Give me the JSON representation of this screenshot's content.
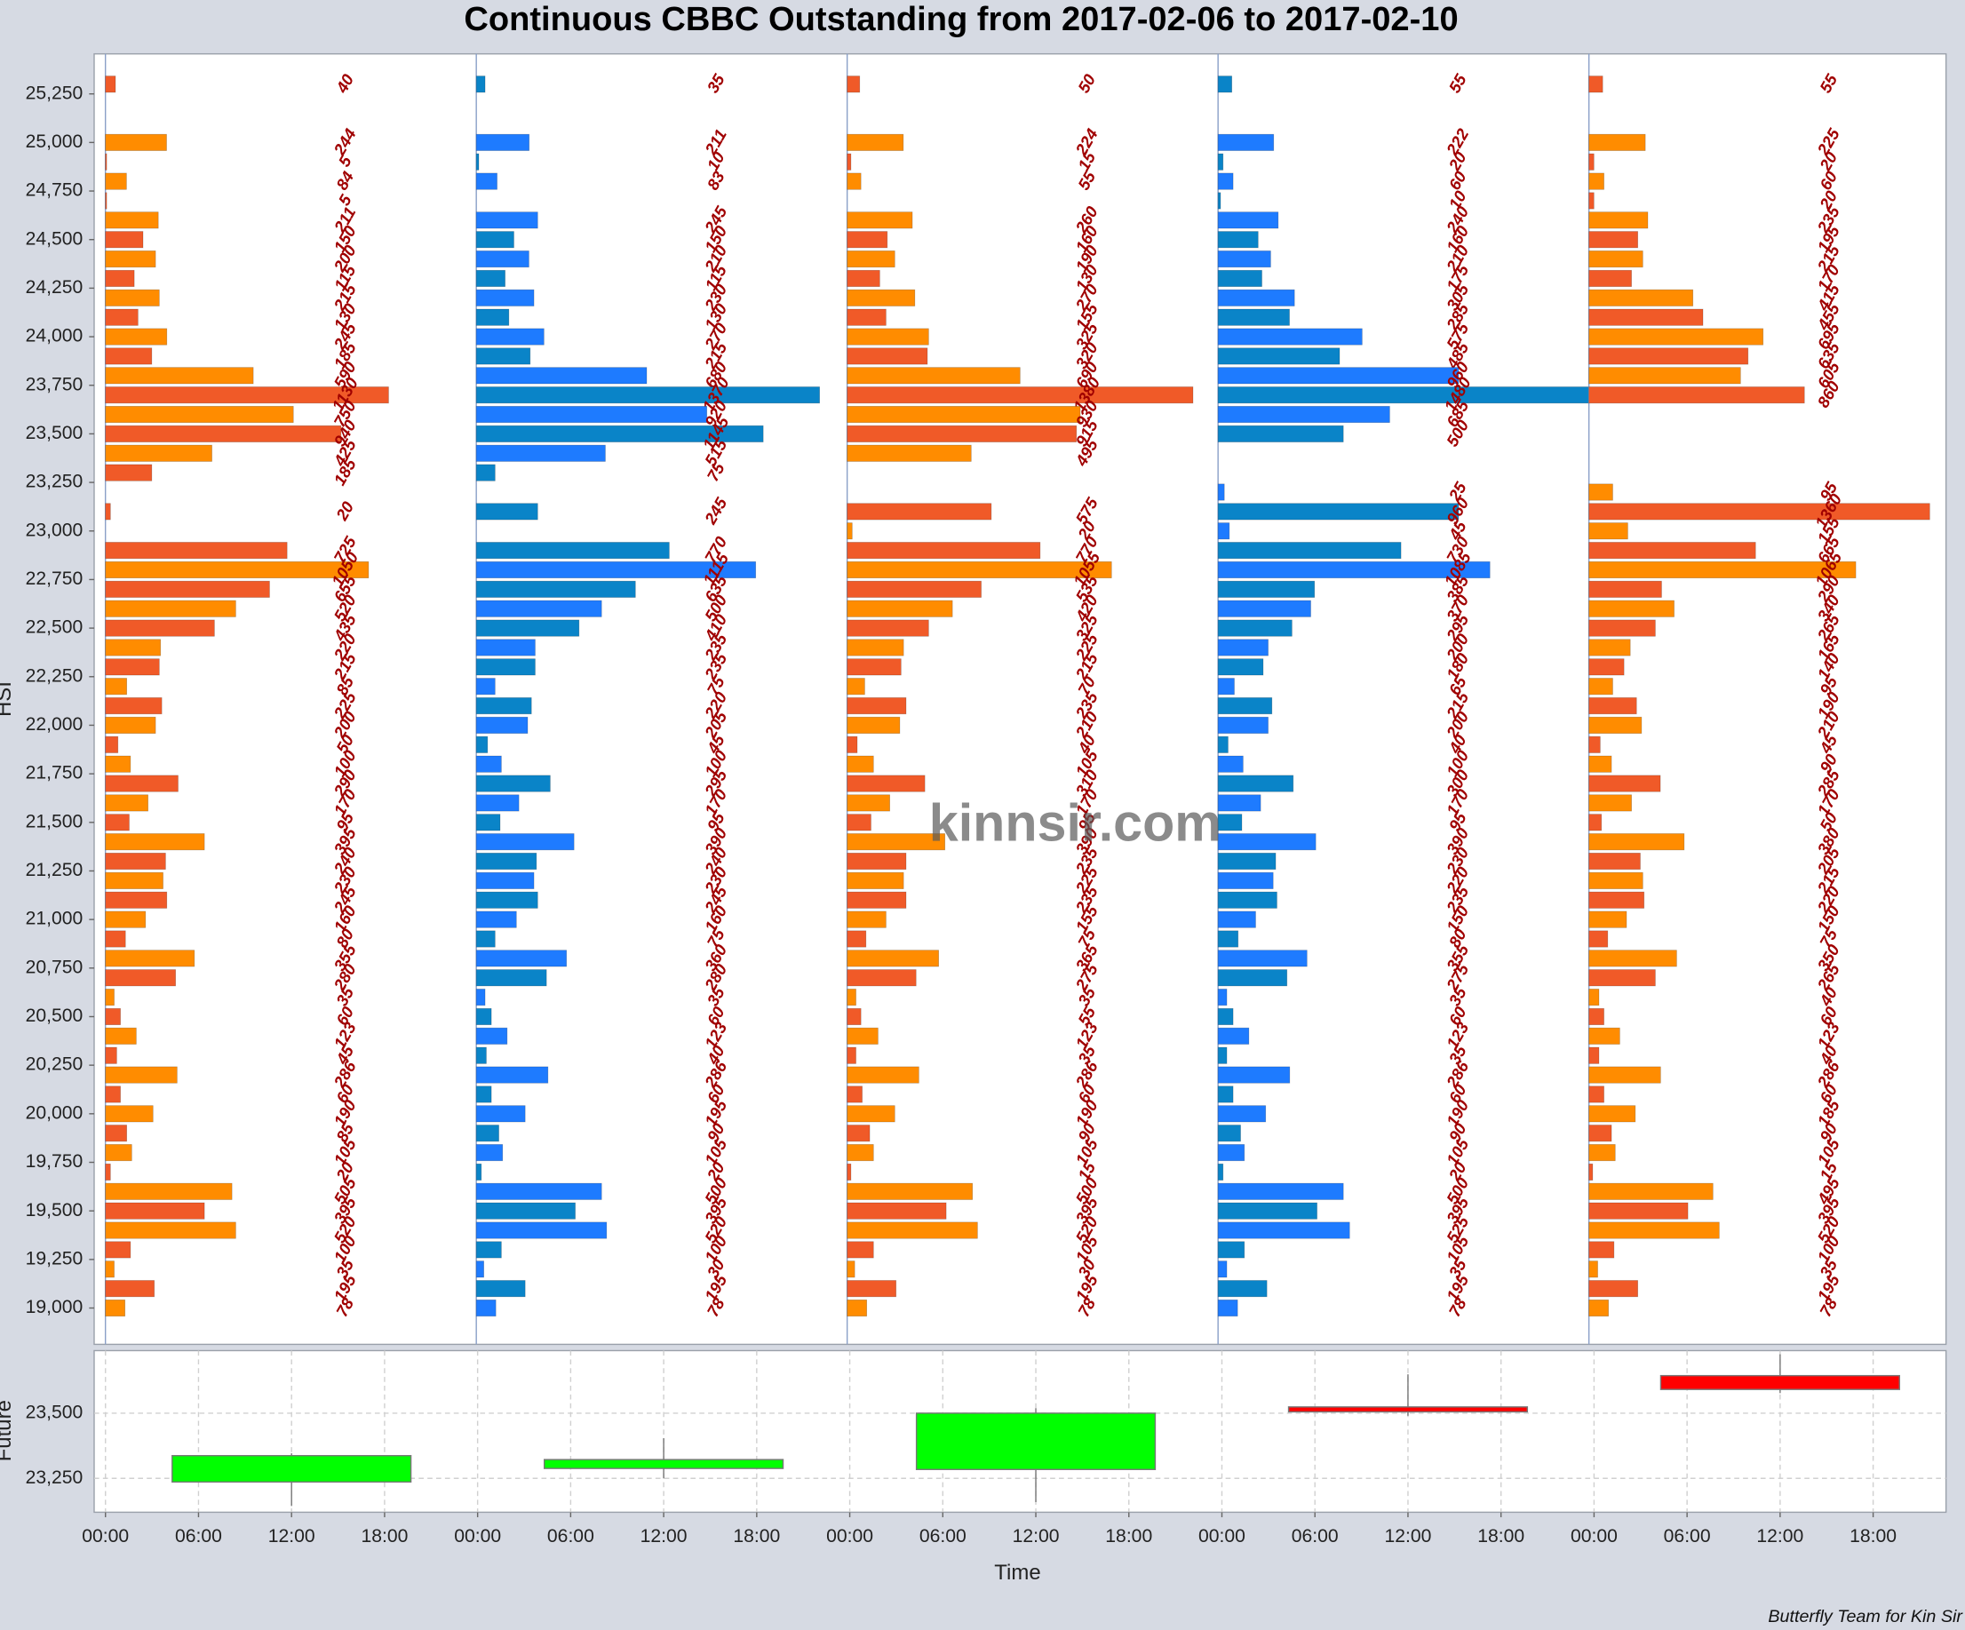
{
  "chart_data": [
    {
      "type": "hbar",
      "title": "Continuous CBBC Outstanding from 2017-02-06 to 2017-02-10",
      "ylabel": "HSI",
      "watermark": "kinnsir.com",
      "ylim": [
        18813,
        25456
      ],
      "yticks": [
        {
          "value": 19000,
          "label": "19,000"
        },
        {
          "value": 19250,
          "label": "19,250"
        },
        {
          "value": 19500,
          "label": "19,500"
        },
        {
          "value": 19750,
          "label": "19,750"
        },
        {
          "value": 20000,
          "label": "20,000"
        },
        {
          "value": 20250,
          "label": "20,250"
        },
        {
          "value": 20500,
          "label": "20,500"
        },
        {
          "value": 20750,
          "label": "20,750"
        },
        {
          "value": 21000,
          "label": "21,000"
        },
        {
          "value": 21250,
          "label": "21,250"
        },
        {
          "value": 21500,
          "label": "21,500"
        },
        {
          "value": 21750,
          "label": "21,750"
        },
        {
          "value": 22000,
          "label": "22,000"
        },
        {
          "value": 22250,
          "label": "22,250"
        },
        {
          "value": 22500,
          "label": "22,500"
        },
        {
          "value": 22750,
          "label": "22,750"
        },
        {
          "value": 23000,
          "label": "23,000"
        },
        {
          "value": 23250,
          "label": "23,250"
        },
        {
          "value": 23500,
          "label": "23,500"
        },
        {
          "value": 23750,
          "label": "23,750"
        },
        {
          "value": 24000,
          "label": "24,000"
        },
        {
          "value": 24250,
          "label": "24,250"
        },
        {
          "value": 24500,
          "label": "24,500"
        },
        {
          "value": 24750,
          "label": "24,750"
        },
        {
          "value": 25000,
          "label": "25,000"
        },
        {
          "value": 25250,
          "label": "25,250"
        }
      ],
      "xlim": [
        0,
        1480
      ],
      "y": [
        25300,
        25200,
        25100,
        25000,
        24900,
        24800,
        24700,
        24600,
        24500,
        24400,
        24300,
        24200,
        24100,
        24000,
        23900,
        23800,
        23700,
        23600,
        23500,
        23400,
        23300,
        23200,
        23100,
        23000,
        22900,
        22800,
        22700,
        22600,
        22500,
        22400,
        22300,
        22200,
        22100,
        22000,
        21900,
        21800,
        21700,
        21600,
        21500,
        21400,
        21300,
        21200,
        21100,
        21000,
        20900,
        20800,
        20700,
        20600,
        20500,
        20400,
        20300,
        20200,
        20100,
        20000,
        19900,
        19800,
        19700,
        19600,
        19500,
        19400,
        19300,
        19200,
        19100,
        19000
      ],
      "label_color": "#a00000",
      "series": [
        {
          "colors": [
            "#ff8c00",
            "#f05a28"
          ],
          "values": [
            40,
            0,
            0,
            244,
            5,
            84,
            5,
            211,
            150,
            200,
            115,
            215,
            130,
            245,
            185,
            590,
            1130,
            750,
            940,
            425,
            185,
            0,
            20,
            0,
            725,
            1050,
            655,
            520,
            435,
            220,
            215,
            85,
            225,
            200,
            50,
            100,
            290,
            170,
            95,
            395,
            240,
            230,
            245,
            160,
            80,
            355,
            280,
            35,
            60,
            123,
            45,
            286,
            60,
            190,
            85,
            105,
            20,
            505,
            395,
            520,
            100,
            35,
            195,
            78
          ]
        },
        {
          "colors": [
            "#1e7bff",
            "#0a84c8"
          ],
          "values": [
            35,
            0,
            0,
            211,
            10,
            83,
            0,
            245,
            150,
            210,
            115,
            230,
            130,
            270,
            215,
            680,
            1370,
            920,
            1145,
            515,
            75,
            0,
            245,
            0,
            770,
            1115,
            635,
            500,
            410,
            235,
            235,
            75,
            220,
            205,
            45,
            100,
            295,
            170,
            95,
            390,
            240,
            230,
            245,
            160,
            75,
            360,
            280,
            35,
            60,
            123,
            40,
            286,
            60,
            195,
            90,
            105,
            20,
            500,
            395,
            520,
            100,
            30,
            195,
            78
          ]
        },
        {
          "colors": [
            "#ff8c00",
            "#f05a28"
          ],
          "values": [
            50,
            0,
            0,
            224,
            15,
            55,
            0,
            260,
            160,
            190,
            130,
            270,
            155,
            325,
            320,
            690,
            1380,
            930,
            915,
            495,
            0,
            0,
            575,
            20,
            770,
            1055,
            535,
            420,
            325,
            225,
            215,
            70,
            235,
            210,
            40,
            105,
            310,
            170,
            95,
            390,
            235,
            225,
            235,
            155,
            75,
            365,
            275,
            35,
            55,
            123,
            35,
            286,
            60,
            190,
            90,
            105,
            15,
            500,
            395,
            520,
            105,
            30,
            195,
            78
          ]
        },
        {
          "colors": [
            "#1e7bff",
            "#0a84c8"
          ],
          "values": [
            55,
            0,
            0,
            222,
            20,
            60,
            10,
            240,
            160,
            210,
            175,
            305,
            285,
            575,
            485,
            960,
            1480,
            685,
            500,
            0,
            0,
            25,
            960,
            45,
            730,
            1085,
            385,
            370,
            295,
            200,
            180,
            65,
            215,
            200,
            40,
            100,
            300,
            170,
            95,
            390,
            230,
            220,
            235,
            150,
            80,
            355,
            275,
            35,
            60,
            123,
            35,
            286,
            60,
            190,
            90,
            105,
            20,
            500,
            395,
            525,
            105,
            35,
            195,
            78
          ]
        },
        {
          "colors": [
            "#ff8c00",
            "#f05a28"
          ],
          "values": [
            55,
            0,
            0,
            225,
            20,
            60,
            20,
            235,
            195,
            215,
            170,
            415,
            455,
            695,
            635,
            605,
            860,
            0,
            0,
            0,
            0,
            95,
            1360,
            155,
            665,
            1065,
            290,
            340,
            265,
            165,
            140,
            95,
            190,
            210,
            45,
            90,
            285,
            170,
            50,
            380,
            205,
            215,
            220,
            150,
            75,
            350,
            265,
            40,
            60,
            123,
            40,
            286,
            60,
            185,
            90,
            105,
            15,
            495,
            395,
            520,
            100,
            35,
            195,
            78
          ]
        }
      ]
    },
    {
      "type": "candlestick",
      "ylabel": "Future",
      "xlabel": "Time",
      "grid": true,
      "xlim": [
        -0.73,
        118.7
      ],
      "xticks": [
        {
          "value": 0,
          "label": "00:00"
        },
        {
          "value": 6,
          "label": "06:00"
        },
        {
          "value": 12,
          "label": "12:00"
        },
        {
          "value": 18,
          "label": "18:00"
        },
        {
          "value": 24,
          "label": "00:00"
        },
        {
          "value": 30,
          "label": "06:00"
        },
        {
          "value": 36,
          "label": "12:00"
        },
        {
          "value": 42,
          "label": "18:00"
        },
        {
          "value": 48,
          "label": "00:00"
        },
        {
          "value": 54,
          "label": "06:00"
        },
        {
          "value": 60,
          "label": "12:00"
        },
        {
          "value": 66,
          "label": "18:00"
        },
        {
          "value": 72,
          "label": "00:00"
        },
        {
          "value": 78,
          "label": "06:00"
        },
        {
          "value": 84,
          "label": "12:00"
        },
        {
          "value": 90,
          "label": "18:00"
        },
        {
          "value": 96,
          "label": "00:00"
        },
        {
          "value": 102,
          "label": "06:00"
        },
        {
          "value": 108,
          "label": "12:00"
        },
        {
          "value": 114,
          "label": "18:00"
        }
      ],
      "ylim": [
        23120,
        23740
      ],
      "yticks": [
        {
          "value": 23250,
          "label": "23,250"
        },
        {
          "value": 23500,
          "label": "23,500"
        }
      ],
      "x": [
        12,
        36,
        60,
        84,
        108
      ],
      "open": [
        23236,
        23288,
        23284,
        23524,
        23644
      ],
      "high": [
        23346,
        23404,
        23519,
        23649,
        23726
      ],
      "low": [
        23144,
        23250,
        23159,
        23490,
        23577
      ],
      "close": [
        23337,
        23322,
        23500,
        23505,
        23591
      ],
      "up_color": "#00ff00",
      "down_color": "#ff0000"
    }
  ],
  "footer": "Butterfly Team for Kin Sir"
}
